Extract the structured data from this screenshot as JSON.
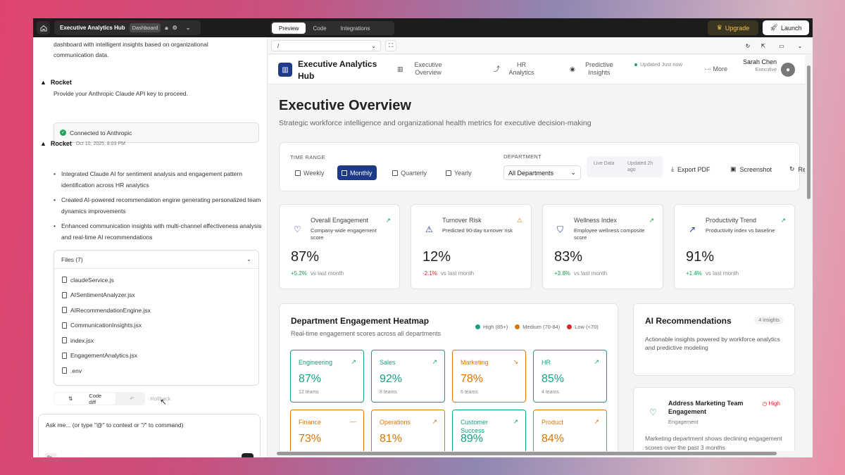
{
  "topbar": {
    "project": "Executive Analytics Hub",
    "badge": "Dashboard",
    "tabs": [
      {
        "label": "Preview",
        "active": true
      },
      {
        "label": "Code",
        "active": false
      },
      {
        "label": "Integrations",
        "active": false
      }
    ],
    "upgrade": "Upgrade",
    "launch": "Launch"
  },
  "chat_panel": {
    "intro_text": "dashboard with intelligent insights based on organizational communication data.",
    "msg1": {
      "author": "Rocket",
      "text": "Provide your Anthropic Claude API key to proceed.",
      "status": "Connected to Anthropic"
    },
    "msg2": {
      "author": "Rocket",
      "date": "Oct 10, 2025, 8:03 PM",
      "bullets": [
        "Integrated Claude AI for sentiment analysis and engagement pattern identification across HR analytics",
        "Created AI-powered recommendation engine generating personalized team dynamics improvements",
        "Enhanced communication insights with multi-channel effectiveness analysis and real-time AI recommendations"
      ]
    },
    "files_title": "Files (7)",
    "files": [
      "claudeService.js",
      "AISentimentAnalyzer.jsx",
      "AIRecommendationEngine.jsx",
      "CommunicationInsights.jsx",
      "index.jsx",
      "EngagementAnalytics.jsx",
      ".env"
    ],
    "code_diff": "Code diff",
    "rollback": "Rollback",
    "input_placeholder": "Ask me... (or type \"@\" to context or \"/\" to command)"
  },
  "preview": {
    "url": "/",
    "nav": {
      "brand": "Executive Analytics Hub",
      "items": [
        {
          "label": "Executive Overview",
          "icon": "bar-chart-icon"
        },
        {
          "label": "HR Analytics",
          "icon": "trend-icon"
        },
        {
          "label": "Predictive Insights",
          "icon": "brain-icon"
        }
      ],
      "updated": "Updated Just now",
      "more": "More",
      "user_name": "Sarah Chen",
      "user_role": "Executive"
    },
    "title": "Executive Overview",
    "subtitle": "Strategic workforce intelligence and organizational health metrics for executive decision-making",
    "filters": {
      "time_range_label": "TIME RANGE",
      "ranges": [
        {
          "label": "Weekly",
          "active": false
        },
        {
          "label": "Monthly",
          "active": true
        },
        {
          "label": "Quarterly",
          "active": false
        },
        {
          "label": "Yearly",
          "active": false
        }
      ],
      "department_label": "DEPARTMENT",
      "department_value": "All Departments",
      "live": "Live Data",
      "updated": "Updated 2h ago",
      "export": "Export PDF",
      "screenshot": "Screenshot",
      "refresh": "Re"
    },
    "kpis": [
      {
        "title": "Overall Engagement",
        "desc": "Company-wide engagement score",
        "value": "87%",
        "change": "+5.2%",
        "change_label": "vs last month",
        "trend": "↗",
        "color": "#16a34a"
      },
      {
        "title": "Turnover Risk",
        "desc": "Predicted 90-day turnover risk",
        "value": "12%",
        "change": "-2.1%",
        "change_label": "vs last month",
        "trend": "⚠",
        "color": "#dc2626"
      },
      {
        "title": "Wellness Index",
        "desc": "Employee wellness composite score",
        "value": "83%",
        "change": "+3.8%",
        "change_label": "vs last month",
        "trend": "↗",
        "color": "#16a34a"
      },
      {
        "title": "Productivity Trend",
        "desc": "Productivity index vs baseline",
        "value": "91%",
        "change": "+1.4%",
        "change_label": "vs last month",
        "trend": "↗",
        "color": "#16a34a"
      }
    ],
    "heatmap": {
      "title": "Department Engagement Heatmap",
      "subtitle": "Real-time engagement scores across all departments",
      "legend": [
        {
          "label": "High (85+)",
          "color": "#16a085"
        },
        {
          "label": "Medium (70-84)",
          "color": "#d97706"
        },
        {
          "label": "Low (<70)",
          "color": "#dc2626"
        }
      ],
      "departments": [
        {
          "name": "Engineering",
          "value": "87%",
          "teams": "12 teams",
          "level": "high",
          "trend": "↗"
        },
        {
          "name": "Sales",
          "value": "92%",
          "teams": "8 teams",
          "level": "high",
          "trend": "↗"
        },
        {
          "name": "Marketing",
          "value": "78%",
          "teams": "6 teams",
          "level": "medium",
          "trend": "↘"
        },
        {
          "name": "HR",
          "value": "85%",
          "teams": "4 teams",
          "level": "high",
          "trend": "↗"
        },
        {
          "name": "Finance",
          "value": "73%",
          "teams": "",
          "level": "medium",
          "trend": "—"
        },
        {
          "name": "Operations",
          "value": "81%",
          "teams": "",
          "level": "medium",
          "trend": "↗"
        },
        {
          "name": "Customer Success",
          "value": "89%",
          "teams": "",
          "level": "high",
          "trend": "↗"
        },
        {
          "name": "Product",
          "value": "84%",
          "teams": "",
          "level": "medium",
          "trend": "↗"
        }
      ]
    },
    "ai": {
      "title": "AI Recommendations",
      "badge": "4 insights",
      "subtitle": "Actionable insights powered by workforce analytics and predictive modeling",
      "rec": {
        "title": "Address Marketing Team Engagement",
        "category": "Engagement",
        "priority": "High",
        "desc": "Marketing department shows declining engagement scores over the past 3 months"
      }
    }
  }
}
